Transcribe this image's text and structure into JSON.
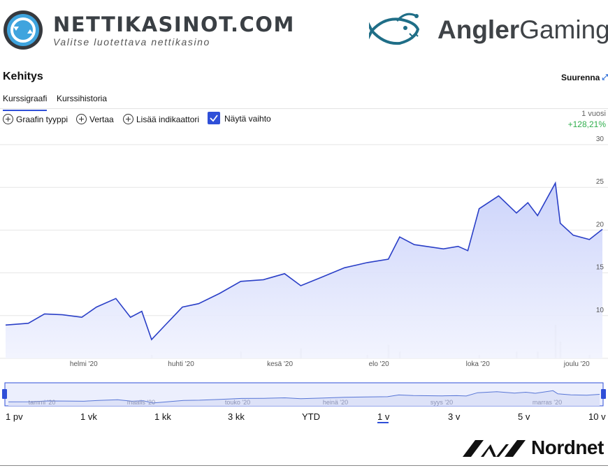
{
  "header": {
    "site_name": "NETTIKASINOT.COM",
    "site_tagline": "Valitse luotettava nettikasino",
    "company_name_bold": "Angler",
    "company_name_rest": "Gaming"
  },
  "title": "Kehitys",
  "expand_label": "Suurenna",
  "tabs": [
    {
      "label": "Kurssigraafi",
      "active": true
    },
    {
      "label": "Kurssihistoria",
      "active": false
    }
  ],
  "toolbar": {
    "chart_type": "Graafin tyyppi",
    "compare": "Vertaa",
    "add_indicator": "Lisää indikaattori",
    "show_volume": "Näytä vaihto",
    "show_volume_checked": true,
    "period": "1 vuosi",
    "change": "+128,21%"
  },
  "ranges": [
    "1 pv",
    "1 vk",
    "1 kk",
    "3 kk",
    "YTD",
    "1 v",
    "3 v",
    "5 v",
    "10 v"
  ],
  "active_range": "1 v",
  "navigator_labels": [
    "tammi '20",
    "maalis '20",
    "touko '20",
    "heinä '20",
    "syys '20",
    "marras '20"
  ],
  "footer_brand": "Nordnet",
  "colors": {
    "accent": "#2f4fd8",
    "line": "#2a3fc7",
    "area": "#dde2fb",
    "positive": "#2fae4c"
  },
  "chart_data": {
    "type": "area",
    "title": "",
    "xlabel": "",
    "ylabel": "",
    "ylim": [
      5,
      30
    ],
    "yticks": [
      10,
      15,
      20,
      25,
      30
    ],
    "xticks": [
      "helmi '20",
      "huhti '20",
      "kesä '20",
      "elo '20",
      "loka '20",
      "joulu '20"
    ],
    "x": [
      "2019-12-20",
      "2020-01-03",
      "2020-01-13",
      "2020-01-24",
      "2020-02-05",
      "2020-02-14",
      "2020-02-26",
      "2020-03-06",
      "2020-03-13",
      "2020-03-19",
      "2020-03-27",
      "2020-04-07",
      "2020-04-17",
      "2020-04-30",
      "2020-05-13",
      "2020-05-27",
      "2020-06-09",
      "2020-06-19",
      "2020-07-02",
      "2020-07-16",
      "2020-07-30",
      "2020-08-12",
      "2020-08-19",
      "2020-08-28",
      "2020-09-15",
      "2020-09-24",
      "2020-09-30",
      "2020-10-07",
      "2020-10-19",
      "2020-10-30",
      "2020-11-06",
      "2020-11-12",
      "2020-11-23",
      "2020-11-26",
      "2020-12-04",
      "2020-12-14",
      "2020-12-22"
    ],
    "y": [
      8.9,
      9.1,
      10.2,
      10.1,
      9.8,
      11.0,
      12.0,
      9.8,
      10.5,
      7.2,
      8.8,
      11.0,
      11.4,
      12.6,
      14.0,
      14.2,
      14.9,
      13.5,
      14.5,
      15.6,
      16.2,
      16.6,
      19.2,
      18.3,
      17.8,
      18.1,
      17.6,
      22.5,
      24.0,
      22.0,
      23.2,
      21.7,
      25.5,
      20.8,
      19.4,
      18.9,
      20.1
    ],
    "volume": [
      0,
      0,
      0,
      0,
      0,
      0,
      0,
      0,
      0,
      0.1,
      0,
      0,
      0,
      0,
      0.2,
      0,
      0,
      0.3,
      0,
      0,
      0.1,
      0.4,
      0.2,
      0,
      0,
      0,
      0,
      0.1,
      0,
      0.2,
      0,
      0.2,
      1.0,
      0.5,
      0,
      0.1,
      0
    ]
  }
}
